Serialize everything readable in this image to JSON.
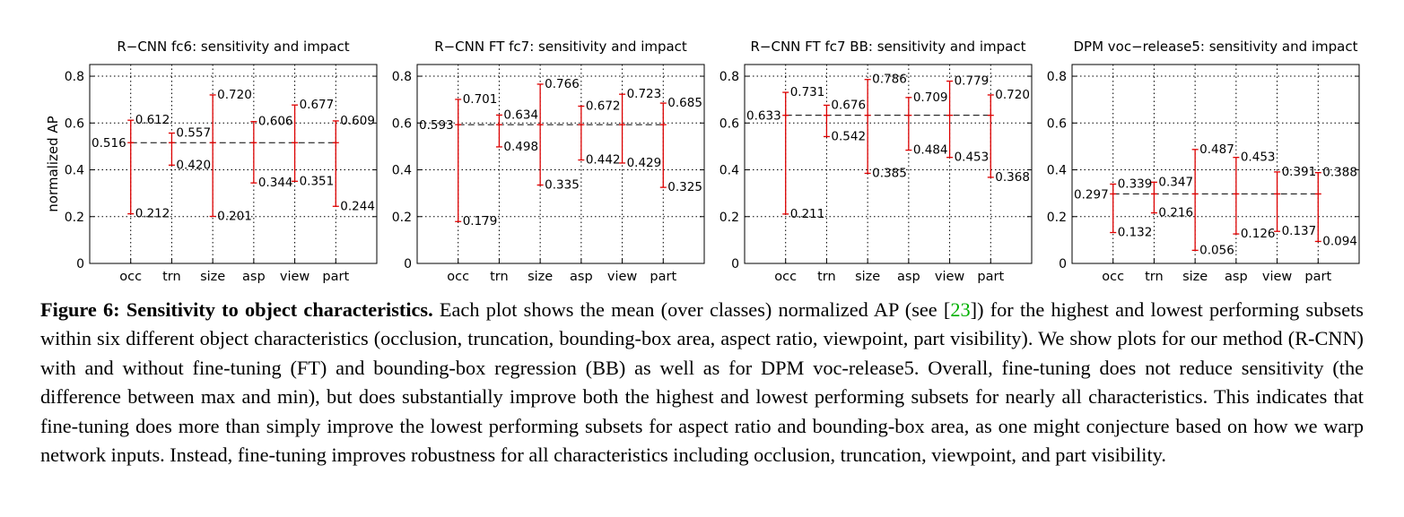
{
  "chart_data": [
    {
      "type": "range",
      "title": "R−CNN fc6: sensitivity and impact",
      "ylabel": "normalized AP",
      "ylim": [
        0,
        0.85
      ],
      "yticks": [
        "0",
        "0.2",
        "0.4",
        "0.6",
        "0.8"
      ],
      "grid": true,
      "categories": [
        "occ",
        "trn",
        "size",
        "asp",
        "view",
        "part"
      ],
      "mean": 0.516,
      "mean_label": "0.516",
      "max": [
        0.612,
        0.557,
        0.72,
        0.606,
        0.677,
        0.609
      ],
      "min": [
        0.212,
        0.42,
        0.201,
        0.344,
        0.351,
        0.244
      ],
      "max_labels": [
        "0.612",
        "0.557",
        "0.720",
        "0.606",
        "0.677",
        "0.609"
      ],
      "min_labels": [
        "0.212",
        "0.420",
        "0.201",
        "0.344",
        "0.351",
        "0.244"
      ]
    },
    {
      "type": "range",
      "title": "R−CNN FT fc7: sensitivity and impact",
      "ylabel": "",
      "ylim": [
        0,
        0.85
      ],
      "yticks": [
        "0",
        "0.2",
        "0.4",
        "0.6",
        "0.8"
      ],
      "grid": true,
      "categories": [
        "occ",
        "trn",
        "size",
        "asp",
        "view",
        "part"
      ],
      "mean": 0.593,
      "mean_label": "0.593",
      "max": [
        0.701,
        0.634,
        0.766,
        0.672,
        0.723,
        0.685
      ],
      "min": [
        0.179,
        0.498,
        0.335,
        0.442,
        0.429,
        0.325
      ],
      "max_labels": [
        "0.701",
        "0.634",
        "0.766",
        "0.672",
        "0.723",
        "0.685"
      ],
      "min_labels": [
        "0.179",
        "0.498",
        "0.335",
        "0.442",
        "0.429",
        "0.325"
      ]
    },
    {
      "type": "range",
      "title": "R−CNN FT fc7 BB: sensitivity and impact",
      "ylabel": "",
      "ylim": [
        0,
        0.85
      ],
      "yticks": [
        "0",
        "0.2",
        "0.4",
        "0.6",
        "0.8"
      ],
      "grid": true,
      "categories": [
        "occ",
        "trn",
        "size",
        "asp",
        "view",
        "part"
      ],
      "mean": 0.633,
      "mean_label": "0.633",
      "max": [
        0.731,
        0.676,
        0.786,
        0.709,
        0.779,
        0.72
      ],
      "min": [
        0.211,
        0.542,
        0.385,
        0.484,
        0.453,
        0.368
      ],
      "max_labels": [
        "0.731",
        "0.676",
        "0.786",
        "0.709",
        "0.779",
        "0.720"
      ],
      "min_labels": [
        "0.211",
        "0.542",
        "0.385",
        "0.484",
        "0.453",
        "0.368"
      ]
    },
    {
      "type": "range",
      "title": "DPM voc−release5: sensitivity and impact",
      "ylabel": "",
      "ylim": [
        0,
        0.85
      ],
      "yticks": [
        "0",
        "0.2",
        "0.4",
        "0.6",
        "0.8"
      ],
      "grid": true,
      "categories": [
        "occ",
        "trn",
        "size",
        "asp",
        "view",
        "part"
      ],
      "mean": 0.297,
      "mean_label": "0.297",
      "max": [
        0.339,
        0.347,
        0.487,
        0.453,
        0.391,
        0.388
      ],
      "min": [
        0.132,
        0.216,
        0.056,
        0.126,
        0.137,
        0.094
      ],
      "max_labels": [
        "0.339",
        "0.347",
        "0.487",
        "0.453",
        "0.391",
        "0.388"
      ],
      "min_labels": [
        "0.132",
        "0.216",
        "0.056",
        "0.126",
        "0.137",
        "0.094"
      ]
    }
  ],
  "caption": {
    "label": "Figure 6: Sensitivity to object characteristics.",
    "text_before_ref": " Each plot shows the mean (over classes) normalized AP (see [",
    "ref": "23",
    "text_after_ref": "]) for the highest and lowest performing subsets within six different object characteristics (occlusion, truncation, bounding-box area, aspect ratio, viewpoint, part visibility).  We show plots for our method (R-CNN) with and without fine-tuning (FT) and bounding-box regression (BB) as well as for DPM voc-release5. Overall, fine-tuning does not reduce sensitivity (the difference between max and min), but does substantially improve both the highest and lowest performing subsets for nearly all characteristics. This indicates that fine-tuning does more than simply improve the lowest performing subsets for aspect ratio and bounding-box area, as one might conjecture based on how we warp network inputs. Instead, fine-tuning improves robustness for all characteristics including occlusion, truncation, viewpoint, and part visibility."
  },
  "colors": {
    "range": "#dd0000",
    "mean": "#000000",
    "grid": "#000000"
  }
}
